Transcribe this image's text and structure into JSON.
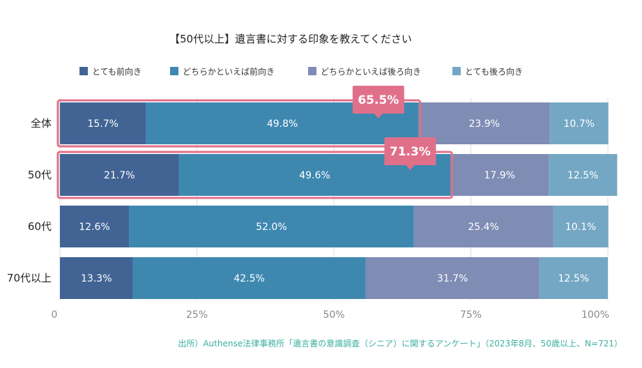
{
  "chart_data": {
    "type": "stacked-bar-horizontal",
    "title": "【50代以上】遺言書に対する印象を教えてください",
    "categories": [
      "全体",
      "50代",
      "60代",
      "70代以上"
    ],
    "series": [
      {
        "name": "とても前向き",
        "color": "#416494",
        "values": [
          15.7,
          21.7,
          12.6,
          13.3
        ],
        "labels": [
          "15.7%",
          "21.7%",
          "12.6%",
          "13.3%"
        ]
      },
      {
        "name": "どちらかといえば前向き",
        "color": "#3e88b0",
        "values": [
          49.8,
          49.6,
          52.0,
          42.5
        ],
        "labels": [
          "49.8%",
          "49.6%",
          "52.0%",
          "42.5%"
        ]
      },
      {
        "name": "どちらかといえば後ろ向き",
        "color": "#7f8cb4",
        "values": [
          23.9,
          17.9,
          25.4,
          31.7
        ],
        "labels": [
          "23.9%",
          "17.9%",
          "25.4%",
          "31.7%"
        ]
      },
      {
        "name": "とても後ろ向き",
        "color": "#74a7c4",
        "values": [
          10.7,
          12.5,
          10.1,
          12.5
        ],
        "labels": [
          "10.7%",
          "12.5%",
          "10.1%",
          "12.5%"
        ]
      }
    ],
    "xticks": [
      0,
      25,
      50,
      75,
      100
    ],
    "xtick_labels": [
      "0",
      "25%",
      "50%",
      "75%",
      "100%"
    ],
    "xlim": [
      0,
      100
    ],
    "grid": true,
    "legend": "top",
    "highlights": [
      {
        "category": "全体",
        "value": 65.5,
        "label": "65.5%"
      },
      {
        "category": "50代",
        "value": 71.3,
        "label": "71.3%"
      }
    ],
    "highlight_color": "#e0708a"
  },
  "source": "出所）Authense法律事務所「遺言書の意識調査（シニア）に関するアンケート」（2023年8月、50歳以上、N=721）"
}
